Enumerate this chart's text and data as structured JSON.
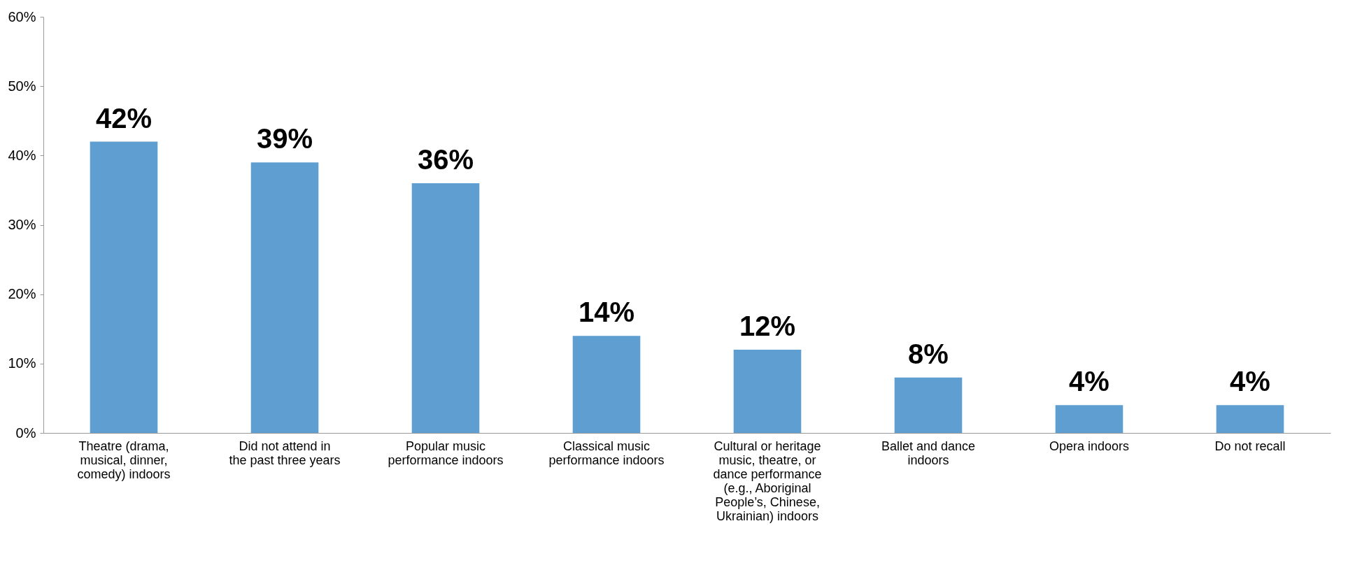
{
  "chart_data": {
    "type": "bar",
    "categories": [
      "Theatre (drama, musical, dinner, comedy) indoors",
      "Did not attend in the past three years",
      "Popular music performance indoors",
      "Classical music performance indoors",
      "Cultural or heritage music, theatre, or dance performance (e.g., Aboriginal People’s, Chinese, Ukrainian) indoors",
      "Ballet and dance indoors",
      "Opera indoors",
      "Do not recall"
    ],
    "values": [
      42,
      39,
      36,
      14,
      12,
      8,
      4,
      4
    ],
    "color": "#5f9ed1",
    "value_labels": [
      "42%",
      "39%",
      "36%",
      "14%",
      "12%",
      "8%",
      "4%",
      "4%"
    ],
    "ylim": [
      0,
      60
    ],
    "yticks": [
      {
        "value": 0,
        "label": "0%"
      },
      {
        "value": 10,
        "label": "10%"
      },
      {
        "value": 20,
        "label": "20%"
      },
      {
        "value": 30,
        "label": "30%"
      },
      {
        "value": 40,
        "label": "40%"
      },
      {
        "value": 50,
        "label": "50%"
      },
      {
        "value": 60,
        "label": "60%"
      }
    ],
    "grid": false
  }
}
